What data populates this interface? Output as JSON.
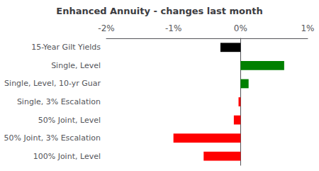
{
  "chart_data": {
    "type": "bar",
    "orientation": "horizontal",
    "title": "Enhanced Annuity - changes last month",
    "categories": [
      "15-Year Gilt Yields",
      "Single, Level",
      "Single, Level, 10-yr Guar",
      "Single, 3% Escalation",
      "50% Joint, Level",
      "50% Joint, 3% Escalation",
      "100% Joint, Level"
    ],
    "values": [
      -0.3,
      0.65,
      0.12,
      -0.03,
      -0.1,
      -1.0,
      -0.55
    ],
    "colors": [
      "#000000",
      "#008000",
      "#008000",
      "#ff0000",
      "#ff0000",
      "#ff0000",
      "#ff0000"
    ],
    "xlim": [
      -2.0,
      1.0
    ],
    "xticks": [
      {
        "value": -2,
        "label": "-2%"
      },
      {
        "value": -1,
        "label": "-1%"
      },
      {
        "value": 0,
        "label": "0%"
      },
      {
        "value": 1,
        "label": "1%"
      }
    ],
    "grid": false
  }
}
